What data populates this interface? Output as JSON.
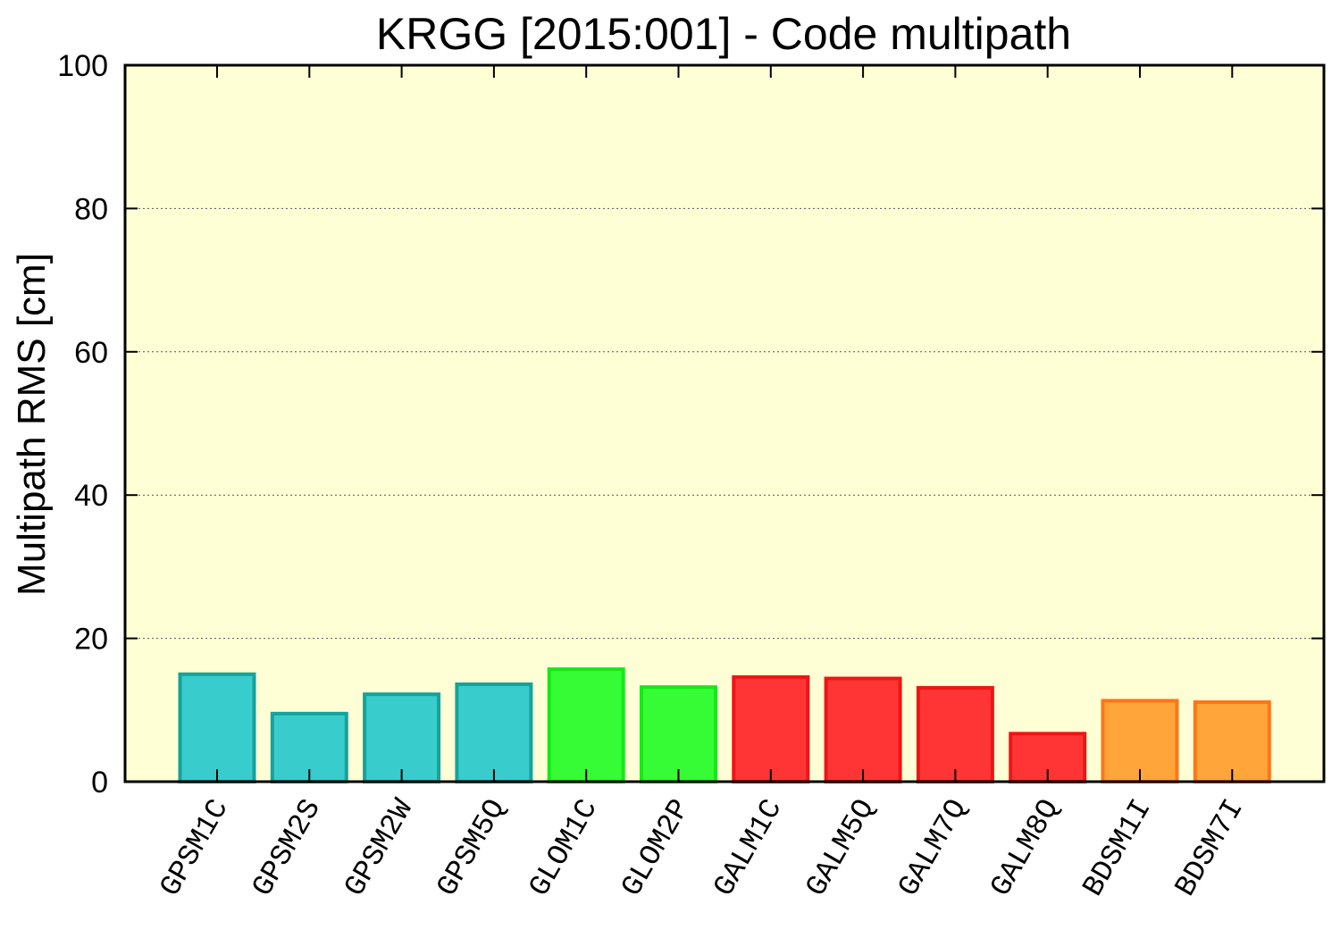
{
  "chart_data": {
    "type": "bar",
    "title": "KRGG [2015:001] - Code multipath",
    "xlabel": "",
    "ylabel": "Multipath RMS [cm]",
    "ylim": [
      0,
      100
    ],
    "yticks": [
      "0",
      "20",
      "40",
      "60",
      "80",
      "100"
    ],
    "grid": "horizontal dotted",
    "plot_background": "#ffffd6",
    "categories": [
      "GPSM1C",
      "GPSM2S",
      "GPSM2W",
      "GPSM5Q",
      "GLOM1C",
      "GLOM2P",
      "GALM1C",
      "GALM5Q",
      "GALM7Q",
      "GALM8Q",
      "BDSM1I",
      "BDSM7I"
    ],
    "values": [
      15.0,
      9.5,
      12.2,
      13.6,
      15.7,
      13.2,
      14.6,
      14.4,
      13.1,
      6.7,
      11.3,
      11.1
    ],
    "bar_colors": {
      "GPS": {
        "fill": "#38cccc",
        "stroke": "#14a39c"
      },
      "GLO": {
        "fill": "#35fc35",
        "stroke": "#17e817"
      },
      "GAL": {
        "fill": "#ff3535",
        "stroke": "#ee1515"
      },
      "BDS": {
        "fill": "#ffa53a",
        "stroke": "#ff7518"
      }
    }
  }
}
